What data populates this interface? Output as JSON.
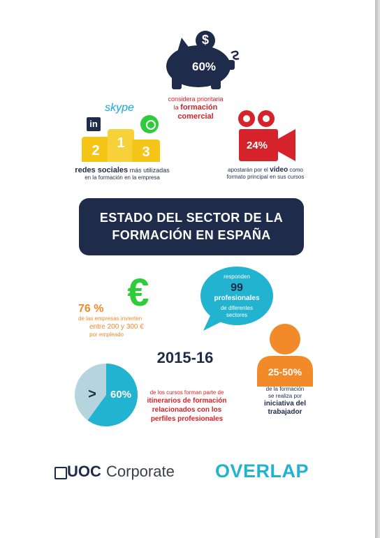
{
  "colors": {
    "navy": "#1f2b4a",
    "red": "#d6222a",
    "orange": "#f28a2a",
    "green": "#2ecb3a",
    "teal": "#21b3cf",
    "gold": "#f5c518",
    "lightblue": "#b5d4de"
  },
  "top_stat": {
    "percent": "60%",
    "line1": "considera prioritaria",
    "line2": "la",
    "line2_bold": "formación",
    "line3": "comercial",
    "icon": "piggy-bank-icon",
    "coin_symbol": "$"
  },
  "social": {
    "skype": "skype",
    "linkedin": "in",
    "podium": [
      "2",
      "1",
      "3"
    ],
    "caption_bold": "redes sociales",
    "caption_rest": "más utilizadas",
    "caption_line2": "en la formación en la empresa"
  },
  "video": {
    "percent": "24%",
    "line1_a": "apostarán por el",
    "line1_bold": "vídeo",
    "line1_b": "como",
    "line2": "formato principal en sus cursos",
    "icon": "video-camera-icon"
  },
  "banner": {
    "line1": "ESTADO DEL SECTOR DE LA",
    "line2": "FORMACIÓN EN ESPAÑA"
  },
  "euro": {
    "symbol": "€",
    "percent": "76 %",
    "line1": "de las empresas invierten",
    "line2": "entre 200 y 300 €",
    "line3": "por empleado"
  },
  "respondents": {
    "line1": "responden",
    "count": "99",
    "line2": "profesionales",
    "line3": "de diferentes",
    "line4": "sectores"
  },
  "year": "2015-16",
  "person": {
    "range": "25-50%",
    "line1": "de la formación",
    "line2": "se realiza por",
    "line3": "iniciativa del",
    "line4": "trabajador",
    "icon": "person-icon"
  },
  "courses": {
    "pie_symbol": ">",
    "pie_percent": "60%",
    "pie_fraction": 0.6,
    "line1": "de los cursos forman parte de",
    "line2": "itinerarios de formación",
    "line3": "relacionados con los",
    "line4": "perfiles profesionales"
  },
  "logos": {
    "uoc_bold": "UOC",
    "uoc_light": "Corporate",
    "overlap": "OVERLAP"
  }
}
